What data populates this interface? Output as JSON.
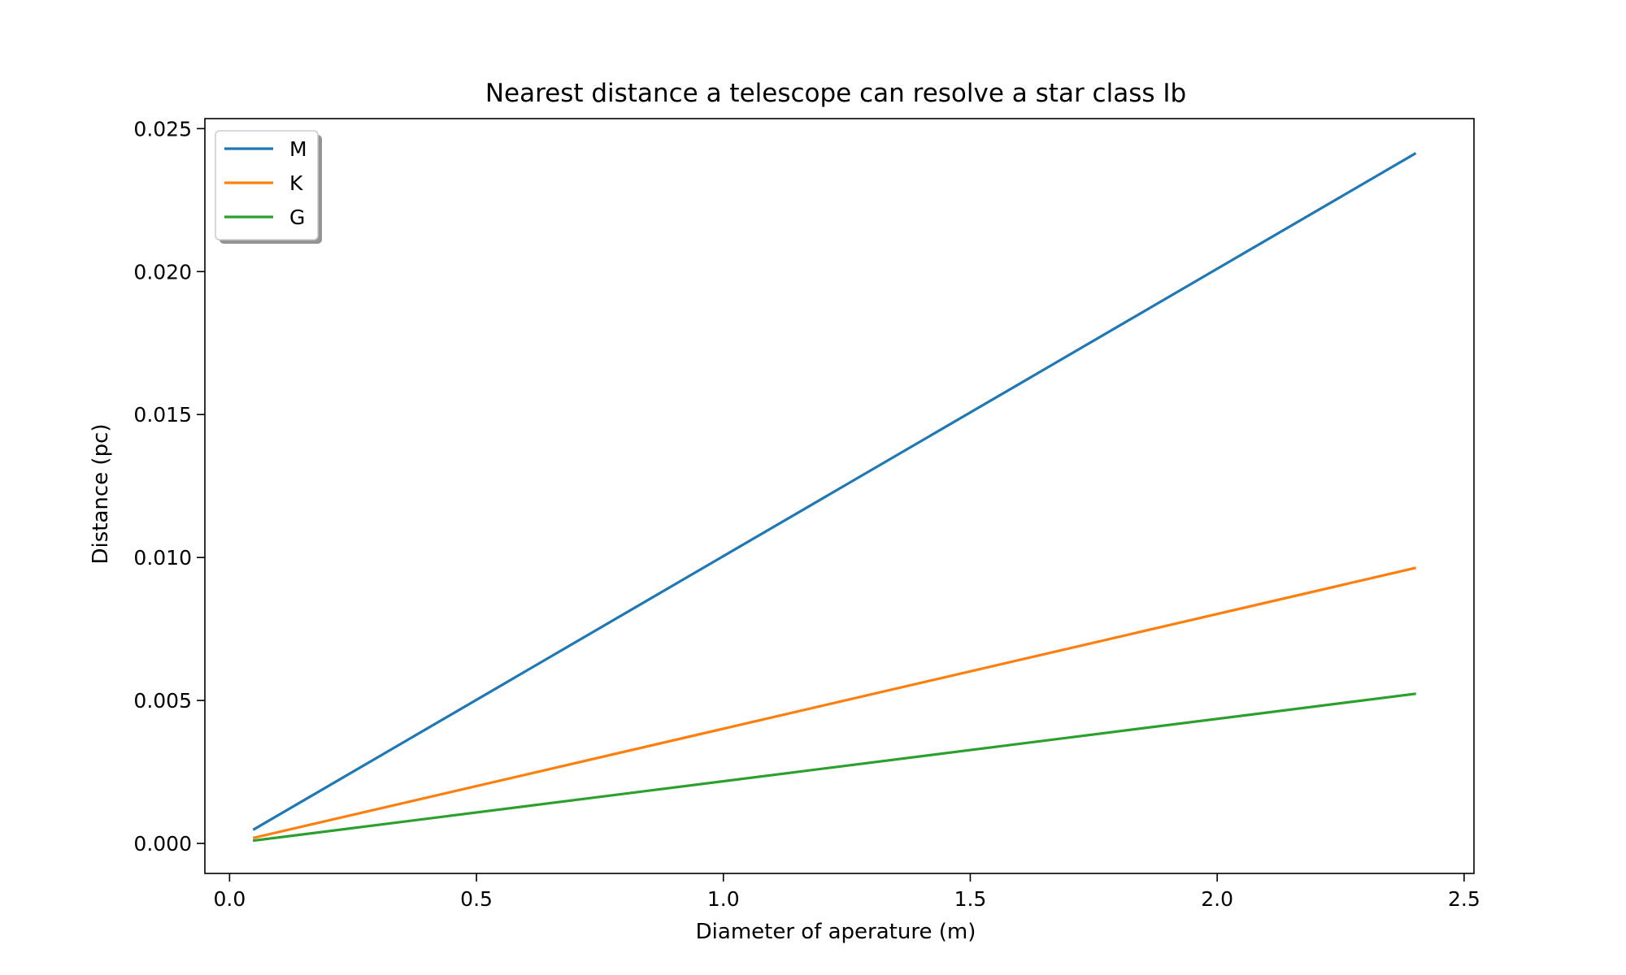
{
  "chart_data": {
    "type": "line",
    "title": "Nearest distance a telescope can resolve a star class Ib",
    "xlabel": "Diameter of aperature (m)",
    "ylabel": "Distance (pc)",
    "xlim": [
      -0.05,
      2.52
    ],
    "ylim": [
      -0.00105,
      0.02535
    ],
    "xticks": [
      0.0,
      0.5,
      1.0,
      1.5,
      2.0,
      2.5
    ],
    "xtick_labels": [
      "0.0",
      "0.5",
      "1.0",
      "1.5",
      "2.0",
      "2.5"
    ],
    "yticks": [
      0.0,
      0.005,
      0.01,
      0.015,
      0.02,
      0.025
    ],
    "ytick_labels": [
      "0.000",
      "0.005",
      "0.010",
      "0.015",
      "0.020",
      "0.025"
    ],
    "grid": false,
    "legend_position": "top-left",
    "series": [
      {
        "name": "M",
        "color": "#1f77b4",
        "x": [
          0.05,
          2.4
        ],
        "y": [
          0.0005,
          0.02412
        ]
      },
      {
        "name": "K",
        "color": "#ff7f0e",
        "x": [
          0.05,
          2.4
        ],
        "y": [
          0.0002,
          0.00963
        ]
      },
      {
        "name": "G",
        "color": "#2ca02c",
        "x": [
          0.05,
          2.4
        ],
        "y": [
          0.0001,
          0.00523
        ]
      }
    ]
  }
}
